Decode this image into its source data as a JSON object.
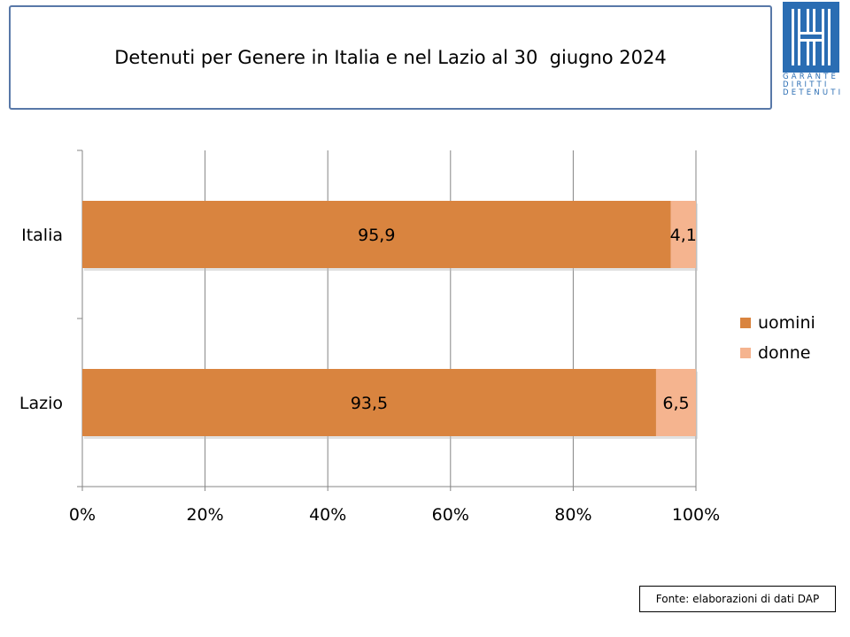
{
  "title": "Detenuti per Genere in Italia e nel Lazio al 30  giugno 2024",
  "logo": {
    "lines": [
      "GARANTE",
      "DIRITTI",
      "DETENUTI"
    ],
    "color": "#2a6db3"
  },
  "chart_data": {
    "type": "bar",
    "orientation": "horizontal",
    "stacked": "100%",
    "categories": [
      "Italia",
      "Lazio"
    ],
    "series": [
      {
        "name": "uomini",
        "values": [
          95.9,
          93.5
        ],
        "labels": [
          "95,9",
          "93,5"
        ],
        "color": "#d9843f"
      },
      {
        "name": "donne",
        "values": [
          4.1,
          6.5
        ],
        "labels": [
          "4,1",
          "6,5"
        ],
        "color": "#f5b48f"
      }
    ],
    "xlim": [
      0,
      100
    ],
    "x_ticks": [
      "0%",
      "20%",
      "40%",
      "60%",
      "80%",
      "100%"
    ],
    "grid": true,
    "legend_position": "right"
  },
  "source": "Fonte: elaborazioni di dati DAP"
}
